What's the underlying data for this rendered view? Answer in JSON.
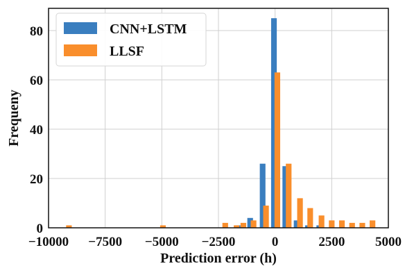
{
  "chart_data": {
    "type": "bar",
    "xlabel": "Prediction error (h)",
    "ylabel": "Frequeny",
    "xlim": [
      -10000,
      5000
    ],
    "ylim": [
      0,
      89
    ],
    "xticks": [
      -10000,
      -7500,
      -5000,
      -2500,
      0,
      2500,
      5000
    ],
    "xtick_labels": [
      "−10000",
      "−7500",
      "−5000",
      "−2500",
      "0",
      "2500",
      "5000"
    ],
    "yticks": [
      0,
      20,
      40,
      60,
      80
    ],
    "ytick_labels": [
      "0",
      "20",
      "40",
      "60",
      "80"
    ],
    "grid": true,
    "legend_position": "top-left",
    "bin_width": 250,
    "series": [
      {
        "name": "CNN+LSTM",
        "color": "#3a7ebf",
        "bars": [
          {
            "x": -1650,
            "y": 1
          },
          {
            "x": -1100,
            "y": 4
          },
          {
            "x": -550,
            "y": 26
          },
          {
            "x": -50,
            "y": 85
          },
          {
            "x": 450,
            "y": 25
          },
          {
            "x": 950,
            "y": 3
          },
          {
            "x": 1450,
            "y": 1
          },
          {
            "x": 1950,
            "y": 1
          }
        ]
      },
      {
        "name": "LLSF",
        "color": "#f98e2c",
        "bars": [
          {
            "x": -9100,
            "y": 1
          },
          {
            "x": -4950,
            "y": 1
          },
          {
            "x": -2200,
            "y": 2
          },
          {
            "x": -1700,
            "y": 1
          },
          {
            "x": -1400,
            "y": 2
          },
          {
            "x": -950,
            "y": 3
          },
          {
            "x": -400,
            "y": 9
          },
          {
            "x": 100,
            "y": 63
          },
          {
            "x": 600,
            "y": 26
          },
          {
            "x": 1100,
            "y": 12
          },
          {
            "x": 1550,
            "y": 8
          },
          {
            "x": 2050,
            "y": 5
          },
          {
            "x": 2500,
            "y": 3
          },
          {
            "x": 2950,
            "y": 3
          },
          {
            "x": 3400,
            "y": 2
          },
          {
            "x": 3850,
            "y": 2
          },
          {
            "x": 4300,
            "y": 3
          }
        ]
      }
    ]
  }
}
